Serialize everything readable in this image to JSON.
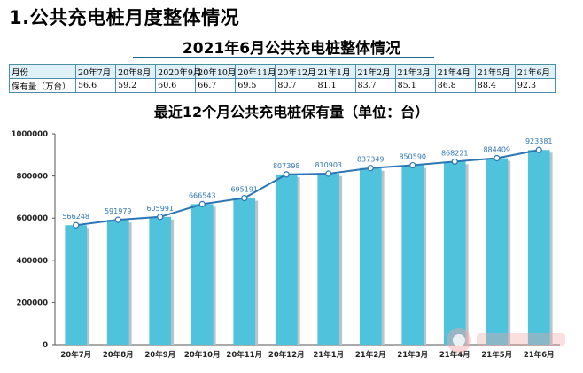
{
  "page": {
    "heading": "1.公共充电桩月度整体情况",
    "subtitle": "2021年6月公共充电桩整体情况"
  },
  "table": {
    "header_label": "月份",
    "row_label": "保有量（万台）",
    "months": [
      "20年7月",
      "20年8月",
      "2020年9月",
      "20年10月",
      "20年11月",
      "20年12月",
      "21年1月",
      "21年2月",
      "21年3月",
      "21年4月",
      "21年5月",
      "21年6月"
    ],
    "values": [
      "56.6",
      "59.2",
      "60.6",
      "66.7",
      "69.5",
      "80.7",
      "81.1",
      "83.7",
      "85.1",
      "86.8",
      "88.4",
      "92.3"
    ]
  },
  "chart_data": {
    "type": "bar",
    "title": "最近12个月公共充电桩保有量（单位：台）",
    "categories": [
      "20年7月",
      "20年8月",
      "20年9月",
      "20年10月",
      "20年11月",
      "20年12月",
      "21年1月",
      "21年2月",
      "21年3月",
      "21年4月",
      "21年5月",
      "21年6月"
    ],
    "series": [
      {
        "values": [
          566248,
          591979,
          605991,
          666543,
          695191,
          807398,
          810903,
          837349,
          850590,
          868221,
          884409,
          923381
        ]
      }
    ],
    "overlay_line": true,
    "ylim": [
      0,
      1000000
    ],
    "yticks": [
      "0",
      "200000",
      "400000",
      "600000",
      "800000",
      "1000000"
    ],
    "grid": false,
    "colors": {
      "bar": "#4fc3dc",
      "bar_shadow": "#b8c4cc",
      "line": "#2e75b6",
      "label": "#2e75b6"
    }
  }
}
